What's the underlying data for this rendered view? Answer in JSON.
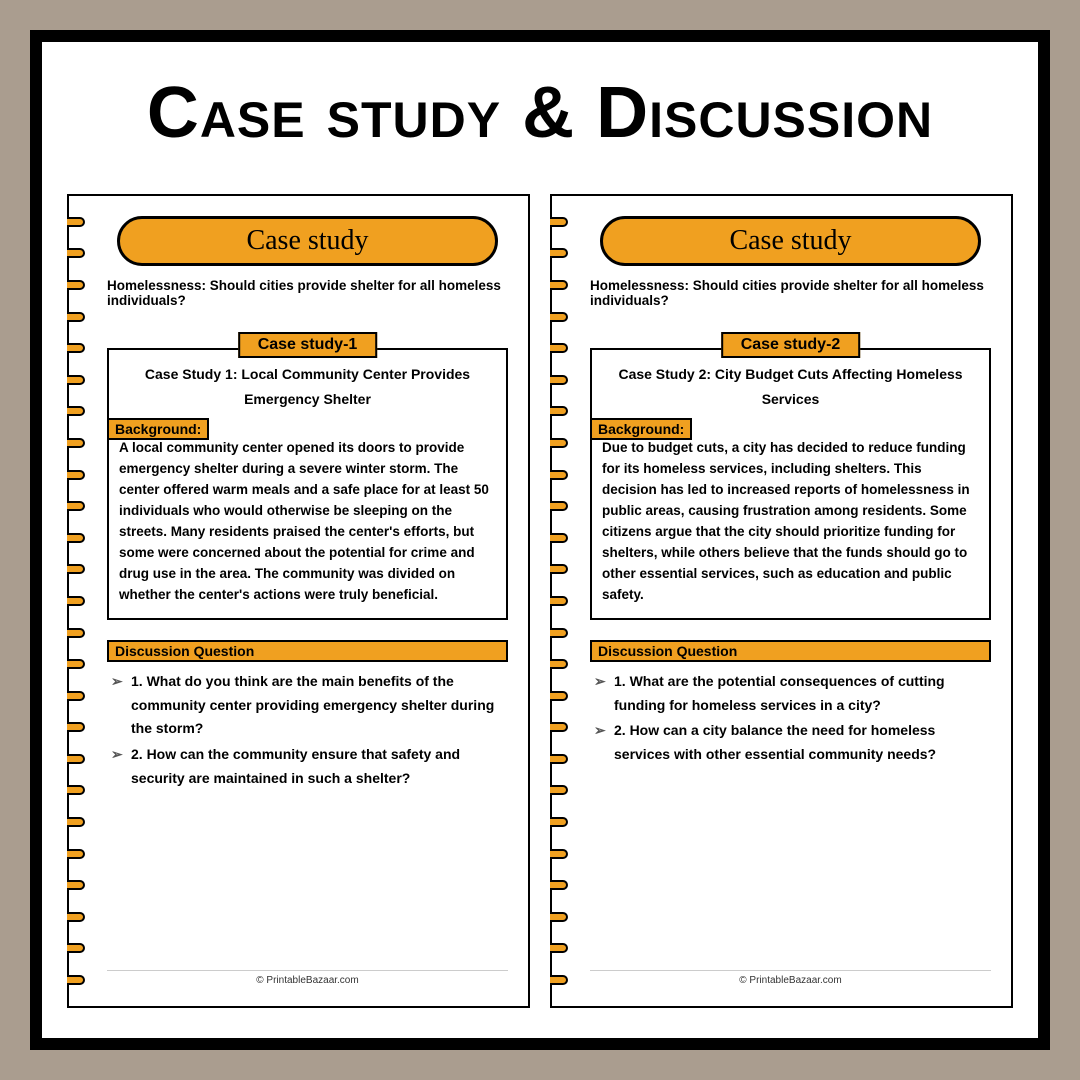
{
  "main_title": "Case study & Discussion",
  "footer": "© PrintableBazaar.com",
  "colors": {
    "outer_bg": "#aa9d8f",
    "frame_bg": "#ffffff",
    "frame_border": "#000000",
    "accent": "#f0a020"
  },
  "page_left": {
    "banner": "Case study",
    "subtitle": "Homelessness: Should cities provide shelter for all homeless individuals?",
    "cs_label": "Case study-1",
    "cs_title": "Case Study 1: Local Community Center Provides Emergency Shelter",
    "bg_label": "Background:",
    "bg_text": "A local community center opened its doors to provide emergency shelter during a severe winter storm. The center offered warm meals and a safe place for at least 50 individuals who would otherwise be sleeping on the streets. Many residents praised the center's efforts, but some were concerned about the potential for crime and drug use in the area. The community was divided on whether the center's actions were truly beneficial.",
    "dq_label": "Discussion Question",
    "q1": "1. What do you think are the main benefits of the community center providing emergency shelter during the storm?",
    "q2": "2. How can the community ensure that safety and security are maintained in such a shelter?"
  },
  "page_right": {
    "banner": "Case study",
    "subtitle": "Homelessness: Should cities provide shelter for all homeless individuals?",
    "cs_label": "Case study-2",
    "cs_title": "Case Study 2: City Budget Cuts Affecting Homeless Services",
    "bg_label": "Background:",
    "bg_text": "Due to budget cuts, a city has decided to reduce funding for its homeless services, including shelters. This decision has led to increased reports of homelessness in public areas, causing frustration among residents. Some citizens argue that the city should prioritize funding for shelters, while others believe that the funds should go to other essential services, such as education and public safety.",
    "dq_label": "Discussion Question",
    "q1": "1. What are the potential consequences of cutting funding for homeless services in a city?",
    "q2": "2. How can a city balance the need for homeless services with other essential community needs?"
  }
}
